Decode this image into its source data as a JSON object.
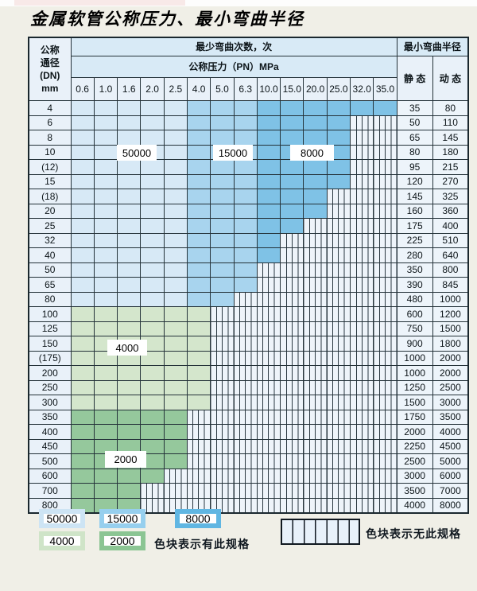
{
  "title": "金属软管公称压力、最小弯曲半径",
  "table": {
    "header": {
      "dn_lines": [
        "公称",
        "通径",
        "(DN)",
        "mm"
      ],
      "bend_cycles_label": "最少弯曲次数，次",
      "pressure_label": "公称压力（PN）MPa",
      "min_radius_label": "最小弯曲半径",
      "static_label": "静 态",
      "dynamic_label": "动 态",
      "pressures": [
        "0.6",
        "1.0",
        "1.6",
        "2.0",
        "2.5",
        "4.0",
        "5.0",
        "6.3",
        "10.0",
        "15.0",
        "20.0",
        "25.0",
        "32.0",
        "35.0"
      ]
    },
    "rows": [
      {
        "dn": "4",
        "colored": 14,
        "zone": "blue",
        "static": "35",
        "dynamic": "80"
      },
      {
        "dn": "6",
        "colored": 12,
        "zone": "blue",
        "static": "50",
        "dynamic": "110"
      },
      {
        "dn": "8",
        "colored": 12,
        "zone": "blue",
        "static": "65",
        "dynamic": "145"
      },
      {
        "dn": "10",
        "colored": 12,
        "zone": "blue",
        "static": "80",
        "dynamic": "180"
      },
      {
        "dn": "(12)",
        "colored": 12,
        "zone": "blue",
        "static": "95",
        "dynamic": "215"
      },
      {
        "dn": "15",
        "colored": 12,
        "zone": "blue",
        "static": "120",
        "dynamic": "270"
      },
      {
        "dn": "(18)",
        "colored": 11,
        "zone": "blue",
        "static": "145",
        "dynamic": "325"
      },
      {
        "dn": "20",
        "colored": 11,
        "zone": "blue",
        "static": "160",
        "dynamic": "360"
      },
      {
        "dn": "25",
        "colored": 10,
        "zone": "blue",
        "static": "175",
        "dynamic": "400"
      },
      {
        "dn": "32",
        "colored": 9,
        "zone": "blue",
        "static": "225",
        "dynamic": "510"
      },
      {
        "dn": "40",
        "colored": 9,
        "zone": "blue",
        "static": "280",
        "dynamic": "640"
      },
      {
        "dn": "50",
        "colored": 8,
        "zone": "blue",
        "static": "350",
        "dynamic": "800"
      },
      {
        "dn": "65",
        "colored": 8,
        "zone": "blue",
        "static": "390",
        "dynamic": "845"
      },
      {
        "dn": "80",
        "colored": 7,
        "zone": "blue",
        "static": "480",
        "dynamic": "1000"
      },
      {
        "dn": "100",
        "colored": 6,
        "zone": "green_4000",
        "static": "600",
        "dynamic": "1200"
      },
      {
        "dn": "125",
        "colored": 6,
        "zone": "green_4000",
        "static": "750",
        "dynamic": "1500"
      },
      {
        "dn": "150",
        "colored": 6,
        "zone": "green_4000",
        "static": "900",
        "dynamic": "1800"
      },
      {
        "dn": "(175)",
        "colored": 6,
        "zone": "green_4000",
        "static": "1000",
        "dynamic": "2000"
      },
      {
        "dn": "200",
        "colored": 6,
        "zone": "green_4000",
        "static": "1000",
        "dynamic": "2000"
      },
      {
        "dn": "250",
        "colored": 6,
        "zone": "green_4000",
        "static": "1250",
        "dynamic": "2500"
      },
      {
        "dn": "300",
        "colored": 6,
        "zone": "green_4000",
        "static": "1500",
        "dynamic": "3000"
      },
      {
        "dn": "350",
        "colored": 5,
        "zone": "green_2000",
        "static": "1750",
        "dynamic": "3500"
      },
      {
        "dn": "400",
        "colored": 5,
        "zone": "green_2000",
        "static": "2000",
        "dynamic": "4000"
      },
      {
        "dn": "450",
        "colored": 5,
        "zone": "green_2000",
        "static": "2250",
        "dynamic": "4500"
      },
      {
        "dn": "500",
        "colored": 5,
        "zone": "green_2000",
        "static": "2500",
        "dynamic": "5000"
      },
      {
        "dn": "600",
        "colored": 4,
        "zone": "green_2000",
        "static": "3000",
        "dynamic": "6000"
      },
      {
        "dn": "700",
        "colored": 3,
        "zone": "green_2000",
        "static": "3500",
        "dynamic": "7000"
      },
      {
        "dn": "800",
        "colored": 3,
        "zone": "green_2000",
        "static": "4000",
        "dynamic": "8000"
      }
    ]
  },
  "overlay_labels": {
    "l50000": "50000",
    "l15000": "15000",
    "l8000": "8000",
    "l4000": "4000",
    "l2000": "2000"
  },
  "legend": {
    "swatches": [
      {
        "label": "50000",
        "color": "#cde4f4"
      },
      {
        "label": "15000",
        "color": "#96cfee"
      },
      {
        "label": "8000",
        "color": "#60b6e2"
      },
      {
        "label": "4000",
        "color": "#cfe4c8"
      },
      {
        "label": "2000",
        "color": "#8bc593"
      }
    ],
    "has_spec_label": "色块表示有此规格",
    "no_spec_label": "色块表示无此规格"
  },
  "colors": {
    "blue_50000": "#d7e9f6",
    "blue_15000": "#a8d4ee",
    "blue_8000": "#7fc2e6",
    "green_4000": "#d4e6cc",
    "green_2000": "#95c89c",
    "hatch_bg": "#eef4fa",
    "grid_line": "#243239",
    "page_bg": "#f0efe7",
    "header_bg": "#d8eaf6",
    "light_cell_bg": "#e9f1f9"
  }
}
